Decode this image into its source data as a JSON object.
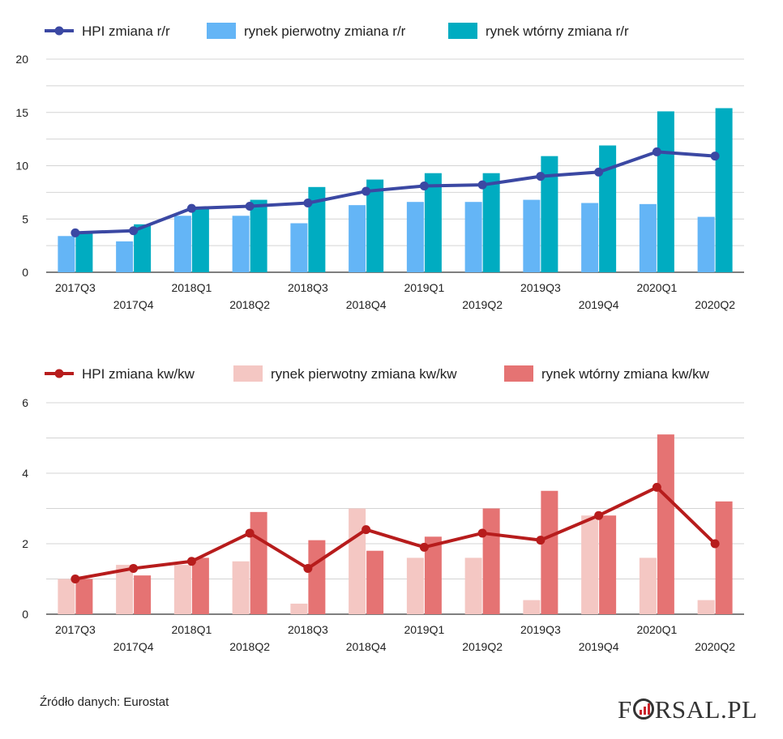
{
  "chart_data": [
    {
      "type": "bar",
      "categories": [
        "2017Q3",
        "2017Q4",
        "2018Q1",
        "2018Q2",
        "2018Q3",
        "2018Q4",
        "2019Q1",
        "2019Q2",
        "2019Q3",
        "2019Q4",
        "2020Q1",
        "2020Q2"
      ],
      "ylim": [
        0,
        20
      ],
      "yticks": [
        0,
        5,
        10,
        15,
        20
      ],
      "grid": true,
      "legend_position": "top-left",
      "series": [
        {
          "name": "HPI zmiana r/r",
          "kind": "line",
          "color": "#3b48a3",
          "values": [
            3.7,
            3.9,
            6.0,
            6.2,
            6.5,
            7.6,
            8.1,
            8.2,
            9.0,
            9.4,
            11.3,
            10.9
          ]
        },
        {
          "name": "rynek pierwotny zmiana r/r",
          "kind": "bar",
          "color": "#64b5f6",
          "values": [
            3.4,
            2.9,
            5.3,
            5.3,
            4.6,
            6.3,
            6.6,
            6.6,
            6.8,
            6.5,
            6.4,
            5.2
          ]
        },
        {
          "name": "rynek wtórny zmiana r/r",
          "kind": "bar",
          "color": "#00acc1",
          "values": [
            3.7,
            4.5,
            6.1,
            6.8,
            8.0,
            8.7,
            9.3,
            9.3,
            10.9,
            11.9,
            15.1,
            15.4
          ]
        }
      ]
    },
    {
      "type": "bar",
      "categories": [
        "2017Q3",
        "2017Q4",
        "2018Q1",
        "2018Q2",
        "2018Q3",
        "2018Q4",
        "2019Q1",
        "2019Q2",
        "2019Q3",
        "2019Q4",
        "2020Q1",
        "2020Q2"
      ],
      "ylim": [
        0,
        6
      ],
      "yticks": [
        0,
        2,
        4,
        6
      ],
      "grid": true,
      "legend_position": "top-left",
      "series": [
        {
          "name": "HPI zmiana kw/kw",
          "kind": "line",
          "color": "#b71c1c",
          "values": [
            1.0,
            1.3,
            1.5,
            2.3,
            1.3,
            2.4,
            1.9,
            2.3,
            2.1,
            2.8,
            3.6,
            2.0
          ]
        },
        {
          "name": "rynek pierwotny zmiana kw/kw",
          "kind": "bar",
          "color": "#f4c7c3",
          "values": [
            1.0,
            1.4,
            1.4,
            1.5,
            0.3,
            3.0,
            1.6,
            1.6,
            0.4,
            2.8,
            1.6,
            0.4
          ]
        },
        {
          "name": "rynek wtórny zmiana kw/kw",
          "kind": "bar",
          "color": "#e57373",
          "values": [
            1.0,
            1.1,
            1.6,
            2.9,
            2.1,
            1.8,
            2.2,
            3.0,
            3.5,
            2.8,
            5.1,
            3.2
          ]
        }
      ]
    }
  ],
  "footer": {
    "source": "Źródło danych: Eurostat",
    "logo_text": "FORSAL.PL"
  }
}
